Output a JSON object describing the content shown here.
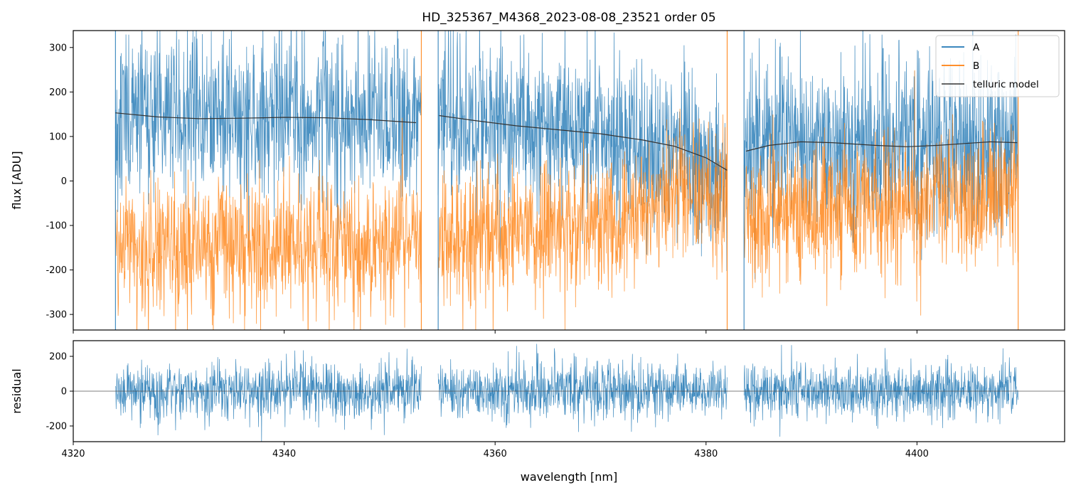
{
  "chart_data": [
    {
      "type": "line",
      "title": "HD_325367_M4368_2023-08-08_23521  order 05",
      "xlabel": "",
      "ylabel": "flux [ADU]",
      "xlim": [
        4320,
        4414
      ],
      "ylim": [
        -335,
        338
      ],
      "y_ticks": [
        -300,
        -200,
        -100,
        0,
        100,
        200,
        300
      ],
      "grid": false,
      "legend": {
        "position": "top-right",
        "entries": [
          "A",
          "B",
          "telluric model"
        ]
      },
      "segments": [
        [
          4324,
          4353
        ],
        [
          4354.6,
          4382
        ],
        [
          4383.6,
          4409.6
        ]
      ],
      "series": [
        {
          "name": "A",
          "color": "#1f77b4",
          "kind": "noisy-spectrum",
          "mean_follows": "telluric model",
          "noise_sigma": 90
        },
        {
          "name": "B",
          "color": "#ff7f0e",
          "kind": "noisy-spectrum",
          "mean": [
            [
              4325,
              -150
            ],
            [
              4352,
              -140
            ],
            [
              4355,
              -130
            ],
            [
              4370,
              -100
            ],
            [
              4380,
              -20
            ],
            [
              4384,
              -80
            ],
            [
              4395,
              -60
            ],
            [
              4409,
              -30
            ]
          ],
          "noise_sigma": 75
        },
        {
          "name": "telluric model",
          "color": "#333333",
          "kind": "model",
          "points": [
            [
              [
                4324,
                153
              ],
              [
                4328,
                144
              ],
              [
                4332,
                140
              ],
              [
                4336,
                141
              ],
              [
                4340,
                143
              ],
              [
                4344,
                142
              ],
              [
                4348,
                138
              ],
              [
                4352.5,
                131
              ]
            ],
            [
              [
                4354.7,
                147
              ],
              [
                4358,
                136
              ],
              [
                4362,
                124
              ],
              [
                4366,
                115
              ],
              [
                4370,
                106
              ],
              [
                4374,
                92
              ],
              [
                4377,
                78
              ],
              [
                4380,
                52
              ],
              [
                4382,
                24
              ]
            ],
            [
              [
                4383.8,
                67
              ],
              [
                4386,
                80
              ],
              [
                4389,
                88
              ],
              [
                4392,
                86
              ],
              [
                4396,
                80
              ],
              [
                4399,
                77
              ],
              [
                4402,
                80
              ],
              [
                4405,
                85
              ],
              [
                4407,
                88
              ],
              [
                4409.5,
                86
              ]
            ]
          ]
        }
      ]
    },
    {
      "type": "line",
      "title": "",
      "xlabel": "wavelength [nm]",
      "ylabel": "residual",
      "xlim": [
        4320,
        4414
      ],
      "ylim": [
        -290,
        290
      ],
      "x_ticks": [
        4320,
        4340,
        4360,
        4380,
        4400
      ],
      "y_ticks": [
        -200,
        0,
        200
      ],
      "grid": false,
      "segments": [
        [
          4324,
          4353
        ],
        [
          4354.6,
          4382
        ],
        [
          4383.6,
          4409.6
        ]
      ],
      "series": [
        {
          "name": "",
          "color": "#1f77b4",
          "kind": "noisy-residual",
          "mean": 0,
          "noise_sigma": 80
        }
      ],
      "reference_line": {
        "y": 0,
        "color": "#555555"
      }
    }
  ]
}
